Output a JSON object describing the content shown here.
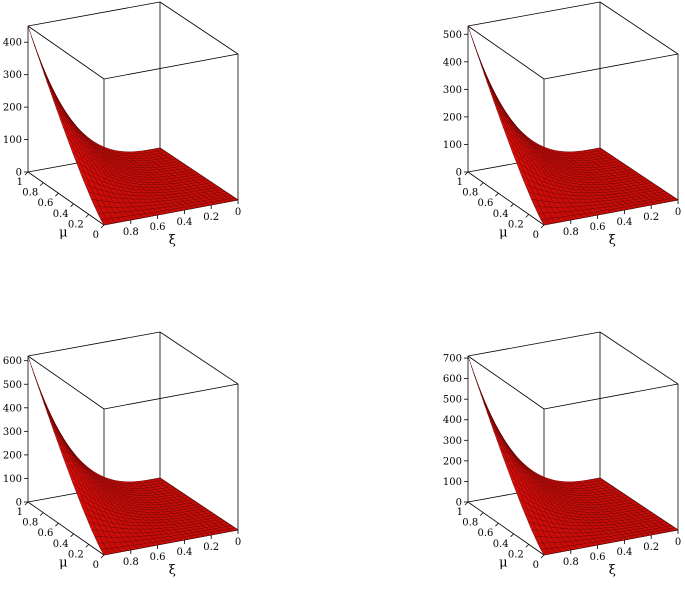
{
  "chart_data": [
    {
      "type": "surface3d",
      "xlabel": "ξ",
      "ylabel": "μ",
      "x_ticks": [
        "0.8",
        "0.6",
        "0.4",
        "0.2",
        "0"
      ],
      "y_ticks": [
        "1",
        "0.8",
        "0.6",
        "0.4",
        "0.2",
        "0"
      ],
      "z_ticks": [
        "0",
        "100",
        "200",
        "300",
        "400"
      ],
      "xlim": [
        0,
        1
      ],
      "ylim": [
        0,
        1
      ],
      "zlim": [
        0,
        450
      ],
      "z_peak": 450,
      "surface_color": "#d40000"
    },
    {
      "type": "surface3d",
      "xlabel": "ξ",
      "ylabel": "μ",
      "x_ticks": [
        "0.8",
        "0.6",
        "0.4",
        "0.2",
        "0"
      ],
      "y_ticks": [
        "1",
        "0.8",
        "0.6",
        "0.4",
        "0.2",
        "0"
      ],
      "z_ticks": [
        "0",
        "100",
        "200",
        "300",
        "400",
        "500"
      ],
      "xlim": [
        0,
        1
      ],
      "ylim": [
        0,
        1
      ],
      "zlim": [
        0,
        530
      ],
      "z_peak": 530,
      "surface_color": "#d40000"
    },
    {
      "type": "surface3d",
      "xlabel": "ξ",
      "ylabel": "μ",
      "x_ticks": [
        "0.8",
        "0.6",
        "0.4",
        "0.2",
        "0"
      ],
      "y_ticks": [
        "1",
        "0.8",
        "0.6",
        "0.4",
        "0.2",
        "0"
      ],
      "z_ticks": [
        "0",
        "100",
        "200",
        "300",
        "400",
        "500",
        "600"
      ],
      "xlim": [
        0,
        1
      ],
      "ylim": [
        0,
        1
      ],
      "zlim": [
        0,
        620
      ],
      "z_peak": 620,
      "surface_color": "#d40000"
    },
    {
      "type": "surface3d",
      "xlabel": "ξ",
      "ylabel": "μ",
      "x_ticks": [
        "0.8",
        "0.6",
        "0.4",
        "0.2",
        "0"
      ],
      "y_ticks": [
        "1",
        "0.8",
        "0.6",
        "0.4",
        "0.2",
        "0"
      ],
      "z_ticks": [
        "0",
        "100",
        "200",
        "300",
        "400",
        "500",
        "600",
        "700"
      ],
      "xlim": [
        0,
        1
      ],
      "ylim": [
        0,
        1
      ],
      "zlim": [
        0,
        710
      ],
      "z_peak": 710,
      "surface_color": "#d40000"
    }
  ]
}
